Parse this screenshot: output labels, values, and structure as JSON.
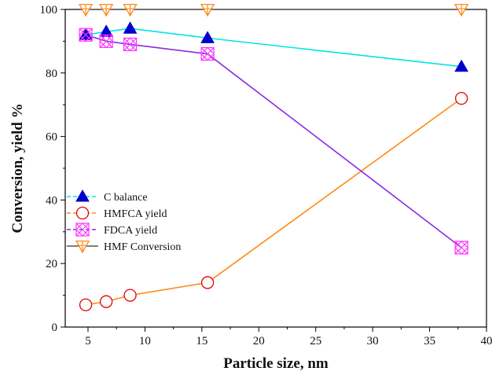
{
  "chart_data": {
    "type": "line",
    "title": "",
    "xlabel": "Particle size, nm",
    "ylabel": "Conversion, yield %",
    "xlim": [
      3,
      40
    ],
    "ylim": [
      0,
      100
    ],
    "x_ticks": [
      "5",
      "10",
      "15",
      "20",
      "25",
      "30",
      "35",
      "40"
    ],
    "y_ticks": [
      "0",
      "20",
      "40",
      "60",
      "80",
      "100"
    ],
    "legend_position": "left-middle",
    "grid": false,
    "series": [
      {
        "name": "C balance",
        "color": "#00e5e5",
        "marker_color": "#0000cc",
        "marker": "triangle-up",
        "x": [
          4.8,
          6.6,
          8.7,
          15.5,
          37.8
        ],
        "y": [
          92,
          93,
          94,
          91,
          82
        ]
      },
      {
        "name": "HMFCA yield",
        "color": "#ff8a1a",
        "marker_color": "#e60000",
        "marker": "open-circle",
        "x": [
          4.8,
          6.6,
          8.7,
          15.5,
          37.8
        ],
        "y": [
          7,
          8,
          10,
          14,
          72
        ]
      },
      {
        "name": "FDCA yield",
        "color": "#8a2be2",
        "marker_color": "#ff33ff",
        "marker": "crossed-square",
        "x": [
          4.8,
          6.6,
          8.7,
          15.5,
          37.8
        ],
        "y": [
          92,
          90,
          89,
          86,
          25
        ]
      },
      {
        "name": "HMF Conversion",
        "color": "#555555",
        "marker_color": "#ff8a1a",
        "marker": "triangle-down-cross",
        "x": [
          4.8,
          6.6,
          8.7,
          15.5,
          37.8
        ],
        "y": [
          100,
          100,
          100,
          100,
          100
        ]
      }
    ]
  }
}
